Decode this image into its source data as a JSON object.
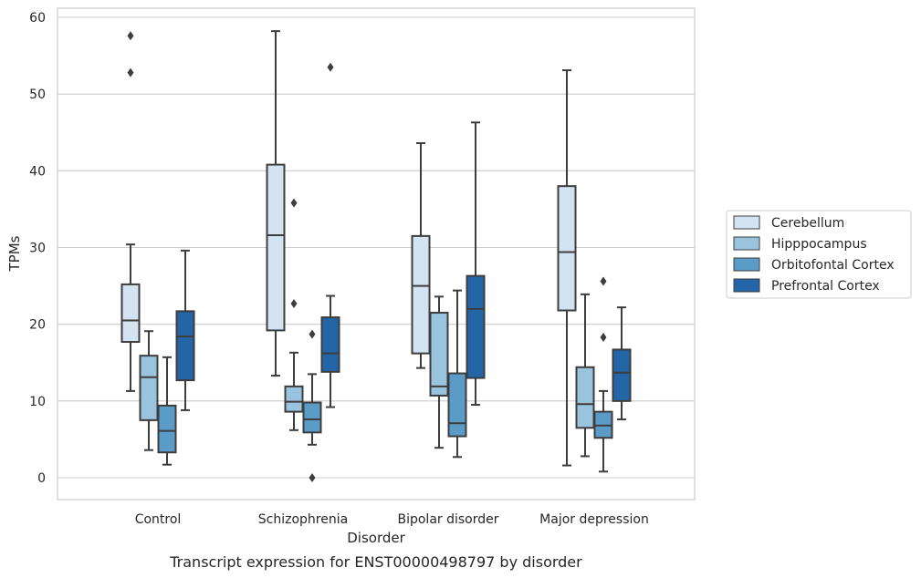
{
  "chart_data": {
    "type": "box",
    "xlabel": "Disorder",
    "ylabel": "TPMs",
    "caption": "Transcript expression for ENST00000498797 by disorder",
    "ylim": [
      -3,
      61.5
    ],
    "yticks": [
      0,
      10,
      20,
      30,
      40,
      50,
      60
    ],
    "grid": "horizontal",
    "legend_position": "right",
    "categories": [
      "Control",
      "Schizophrenia",
      "Bipolar disorder",
      "Major depression"
    ],
    "series": [
      {
        "name": "Cerebellum",
        "color": "#d4e3f2",
        "boxes": [
          {
            "whisker_low": 11.3,
            "q1": 17.7,
            "median": 20.5,
            "q3": 25.2,
            "whisker_high": 30.4,
            "outliers": [
              52.8,
              57.6
            ]
          },
          {
            "whisker_low": 13.3,
            "q1": 19.2,
            "median": 31.6,
            "q3": 40.8,
            "whisker_high": 58.2,
            "outliers": []
          },
          {
            "whisker_low": 14.3,
            "q1": 16.2,
            "median": 25.0,
            "q3": 31.5,
            "whisker_high": 43.6,
            "outliers": []
          },
          {
            "whisker_low": 1.6,
            "q1": 21.8,
            "median": 29.4,
            "q3": 38.0,
            "whisker_high": 53.1,
            "outliers": []
          }
        ]
      },
      {
        "name": "Hipppocampus",
        "color": "#9ac3de",
        "boxes": [
          {
            "whisker_low": 3.6,
            "q1": 7.5,
            "median": 13.1,
            "q3": 15.9,
            "whisker_high": 19.1,
            "outliers": []
          },
          {
            "whisker_low": 6.2,
            "q1": 8.6,
            "median": 9.9,
            "q3": 11.9,
            "whisker_high": 16.3,
            "outliers": [
              22.7,
              35.8
            ]
          },
          {
            "whisker_low": 3.9,
            "q1": 10.7,
            "median": 11.9,
            "q3": 21.5,
            "whisker_high": 23.6,
            "outliers": []
          },
          {
            "whisker_low": 2.8,
            "q1": 6.5,
            "median": 9.6,
            "q3": 14.4,
            "whisker_high": 23.9,
            "outliers": []
          }
        ]
      },
      {
        "name": "Orbitofontal Cortex",
        "color": "#5b9bc8",
        "boxes": [
          {
            "whisker_low": 1.7,
            "q1": 3.3,
            "median": 6.1,
            "q3": 9.4,
            "whisker_high": 15.7,
            "outliers": []
          },
          {
            "whisker_low": 4.3,
            "q1": 5.9,
            "median": 7.6,
            "q3": 9.8,
            "whisker_high": 13.5,
            "outliers": [
              18.7,
              0.0
            ]
          },
          {
            "whisker_low": 2.7,
            "q1": 5.4,
            "median": 7.1,
            "q3": 13.6,
            "whisker_high": 24.4,
            "outliers": []
          },
          {
            "whisker_low": 0.8,
            "q1": 5.2,
            "median": 6.8,
            "q3": 8.6,
            "whisker_high": 11.3,
            "outliers": [
              18.3,
              25.6
            ]
          }
        ]
      },
      {
        "name": "Prefrontal Cortex",
        "color": "#2465a8",
        "boxes": [
          {
            "whisker_low": 8.8,
            "q1": 12.7,
            "median": 18.4,
            "q3": 21.7,
            "whisker_high": 29.6,
            "outliers": []
          },
          {
            "whisker_low": 9.2,
            "q1": 13.8,
            "median": 16.2,
            "q3": 20.9,
            "whisker_high": 23.7,
            "outliers": [
              53.5
            ]
          },
          {
            "whisker_low": 9.5,
            "q1": 13.0,
            "median": 22.0,
            "q3": 26.3,
            "whisker_high": 46.3,
            "outliers": []
          },
          {
            "whisker_low": 7.6,
            "q1": 10.0,
            "median": 13.7,
            "q3": 16.7,
            "whisker_high": 22.2,
            "outliers": []
          }
        ]
      }
    ]
  }
}
